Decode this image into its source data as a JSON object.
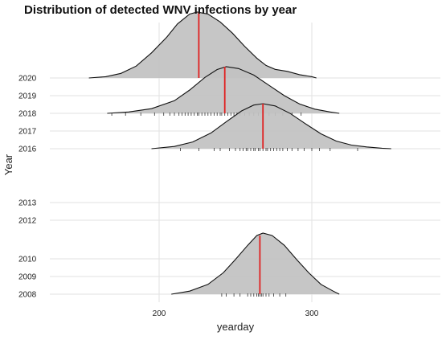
{
  "chart_data": {
    "type": "ridgeline",
    "title": "Distribution of detected WNV infections by year",
    "xlabel": "yearday",
    "ylabel": "Year",
    "x_range": [
      130,
      380
    ],
    "xticks": [
      200,
      300
    ],
    "y_categories": [
      "2008",
      "2009",
      "2010",
      "2012",
      "2013",
      "2016",
      "2017",
      "2018",
      "2019",
      "2020"
    ],
    "grid": true,
    "ridges": [
      {
        "year": "2020",
        "curve": [
          [
            154,
            0.0
          ],
          [
            165,
            0.02
          ],
          [
            175,
            0.07
          ],
          [
            185,
            0.18
          ],
          [
            195,
            0.38
          ],
          [
            205,
            0.62
          ],
          [
            212,
            0.82
          ],
          [
            220,
            0.97
          ],
          [
            225,
            1.0
          ],
          [
            232,
            0.97
          ],
          [
            240,
            0.85
          ],
          [
            248,
            0.68
          ],
          [
            256,
            0.48
          ],
          [
            264,
            0.3
          ],
          [
            270,
            0.19
          ],
          [
            276,
            0.13
          ],
          [
            284,
            0.1
          ],
          [
            292,
            0.05
          ],
          [
            300,
            0.02
          ],
          [
            303,
            0.0
          ]
        ],
        "median": 226
      },
      {
        "year": "2018",
        "curve": [
          [
            166,
            0.0
          ],
          [
            180,
            0.03
          ],
          [
            195,
            0.1
          ],
          [
            210,
            0.27
          ],
          [
            220,
            0.5
          ],
          [
            230,
            0.77
          ],
          [
            238,
            0.94
          ],
          [
            244,
            1.0
          ],
          [
            252,
            0.96
          ],
          [
            262,
            0.82
          ],
          [
            272,
            0.6
          ],
          [
            282,
            0.38
          ],
          [
            292,
            0.2
          ],
          [
            302,
            0.09
          ],
          [
            312,
            0.03
          ],
          [
            318,
            0.0
          ]
        ],
        "median": 243,
        "rug": [
          169,
          178,
          188,
          197,
          203,
          207,
          210,
          213,
          215,
          217,
          219,
          221,
          223,
          225,
          226,
          228,
          230,
          232,
          234,
          236,
          238,
          240,
          241,
          243,
          245,
          247,
          249,
          251,
          253,
          256,
          259,
          262,
          265,
          268,
          272,
          276,
          281,
          287,
          293
        ]
      },
      {
        "year": "2016",
        "curve": [
          [
            195,
            0.0
          ],
          [
            210,
            0.05
          ],
          [
            222,
            0.15
          ],
          [
            234,
            0.35
          ],
          [
            244,
            0.6
          ],
          [
            254,
            0.84
          ],
          [
            262,
            0.97
          ],
          [
            268,
            1.0
          ],
          [
            276,
            0.95
          ],
          [
            286,
            0.78
          ],
          [
            296,
            0.55
          ],
          [
            306,
            0.33
          ],
          [
            316,
            0.17
          ],
          [
            326,
            0.08
          ],
          [
            336,
            0.04
          ],
          [
            346,
            0.01
          ],
          [
            352,
            0.0
          ]
        ],
        "median": 268,
        "rug": [
          214,
          226,
          236,
          240,
          246,
          250,
          253,
          255,
          257,
          258,
          260,
          262,
          263,
          265,
          266,
          268,
          270,
          271,
          273,
          275,
          277,
          279,
          281,
          284,
          287,
          291,
          295,
          300,
          305,
          312,
          330
        ]
      },
      {
        "year": "2008",
        "curve": [
          [
            208,
            0.0
          ],
          [
            220,
            0.05
          ],
          [
            232,
            0.16
          ],
          [
            242,
            0.35
          ],
          [
            250,
            0.57
          ],
          [
            258,
            0.8
          ],
          [
            264,
            0.96
          ],
          [
            268,
            1.0
          ],
          [
            274,
            0.96
          ],
          [
            282,
            0.8
          ],
          [
            290,
            0.57
          ],
          [
            298,
            0.35
          ],
          [
            306,
            0.16
          ],
          [
            314,
            0.05
          ],
          [
            318,
            0.0
          ]
        ],
        "median": 266,
        "rug": [
          241,
          244,
          249,
          253,
          258,
          260,
          262,
          264,
          265,
          266,
          267,
          268,
          270,
          272,
          275,
          279,
          283
        ]
      }
    ]
  }
}
